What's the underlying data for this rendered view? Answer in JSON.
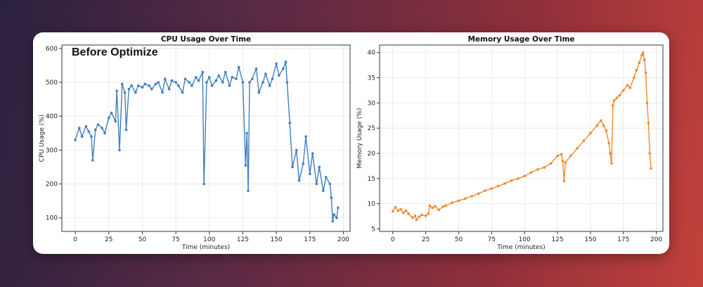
{
  "annotation": "Before Optimize",
  "colors": {
    "cpu": "#3f7fbf",
    "memory": "#f08a2c",
    "grid": "#e6e6e6",
    "axis": "#333333"
  },
  "chart_data": [
    {
      "type": "line",
      "title": "CPU Usage Over Time",
      "xlabel": "Time (minutes)",
      "ylabel": "CPU Usage (%)",
      "xlim": [
        -10,
        205
      ],
      "ylim": [
        60,
        610
      ],
      "xticks": [
        0,
        25,
        50,
        75,
        100,
        125,
        150,
        175,
        200
      ],
      "yticks": [
        100,
        200,
        300,
        400,
        500,
        600
      ],
      "grid": true,
      "series": [
        {
          "name": "CPU Usage",
          "x": [
            0,
            3,
            5,
            8,
            10,
            12,
            13,
            15,
            17,
            20,
            22,
            25,
            27,
            30,
            31,
            33,
            35,
            37,
            38,
            40,
            42,
            45,
            47,
            50,
            52,
            55,
            57,
            60,
            62,
            65,
            67,
            70,
            72,
            75,
            77,
            80,
            82,
            85,
            87,
            90,
            92,
            95,
            96,
            98,
            100,
            102,
            105,
            107,
            110,
            112,
            115,
            117,
            120,
            122,
            125,
            127,
            128,
            129,
            130,
            132,
            135,
            137,
            140,
            142,
            145,
            147,
            150,
            152,
            155,
            157,
            158,
            160,
            162,
            165,
            167,
            170,
            172,
            175,
            177,
            180,
            182,
            185,
            187,
            190,
            191,
            192,
            193,
            195,
            196
          ],
          "y": [
            330,
            365,
            340,
            370,
            355,
            340,
            270,
            360,
            375,
            365,
            350,
            395,
            410,
            385,
            475,
            300,
            495,
            470,
            360,
            480,
            490,
            470,
            490,
            485,
            495,
            490,
            480,
            495,
            500,
            470,
            510,
            480,
            505,
            500,
            490,
            470,
            510,
            500,
            490,
            515,
            505,
            530,
            200,
            500,
            515,
            490,
            505,
            520,
            500,
            530,
            490,
            515,
            510,
            545,
            500,
            255,
            350,
            180,
            500,
            510,
            540,
            470,
            500,
            525,
            490,
            510,
            555,
            520,
            540,
            560,
            500,
            380,
            250,
            300,
            210,
            260,
            340,
            230,
            290,
            200,
            250,
            180,
            220,
            200,
            160,
            90,
            110,
            100,
            130
          ]
        }
      ]
    },
    {
      "type": "line",
      "title": "Memory Usage Over Time",
      "xlabel": "Time (minutes)",
      "ylabel": "Memory Usage (%)",
      "xlim": [
        -10,
        205
      ],
      "ylim": [
        4.5,
        41.5
      ],
      "xticks": [
        0,
        25,
        50,
        75,
        100,
        125,
        150,
        175,
        200
      ],
      "yticks": [
        5,
        10,
        15,
        20,
        25,
        30,
        35,
        40
      ],
      "grid": true,
      "series": [
        {
          "name": "Memory Usage",
          "x": [
            0,
            2,
            4,
            6,
            8,
            10,
            12,
            15,
            17,
            18,
            20,
            22,
            25,
            27,
            28,
            30,
            32,
            35,
            38,
            40,
            45,
            50,
            55,
            60,
            65,
            70,
            75,
            80,
            85,
            90,
            95,
            100,
            105,
            110,
            115,
            120,
            125,
            128,
            129,
            130,
            131,
            135,
            140,
            145,
            150,
            155,
            158,
            160,
            162,
            164,
            165,
            166,
            167,
            168,
            170,
            172,
            175,
            178,
            180,
            183,
            185,
            187,
            189,
            190,
            191,
            192,
            193,
            194,
            195,
            196
          ],
          "y": [
            8.5,
            9.3,
            8.6,
            8.9,
            8.2,
            8.6,
            8.0,
            7.2,
            7.6,
            6.8,
            7.4,
            7.8,
            7.6,
            8.0,
            9.6,
            9.2,
            9.5,
            8.8,
            9.4,
            9.6,
            10.2,
            10.6,
            11.0,
            11.5,
            12.0,
            12.6,
            13.0,
            13.5,
            14.0,
            14.6,
            15.0,
            15.5,
            16.2,
            16.8,
            17.2,
            18.0,
            19.5,
            19.8,
            18.5,
            14.5,
            18.2,
            19.5,
            21.0,
            22.5,
            24.0,
            25.5,
            26.5,
            25.5,
            24.5,
            22.0,
            20.0,
            18.0,
            29.5,
            30.5,
            31.0,
            31.5,
            32.5,
            33.5,
            33.0,
            35.0,
            36.5,
            38.0,
            39.5,
            40.0,
            38.5,
            36.0,
            30.0,
            26.0,
            20.0,
            17.0
          ]
        }
      ]
    }
  ]
}
